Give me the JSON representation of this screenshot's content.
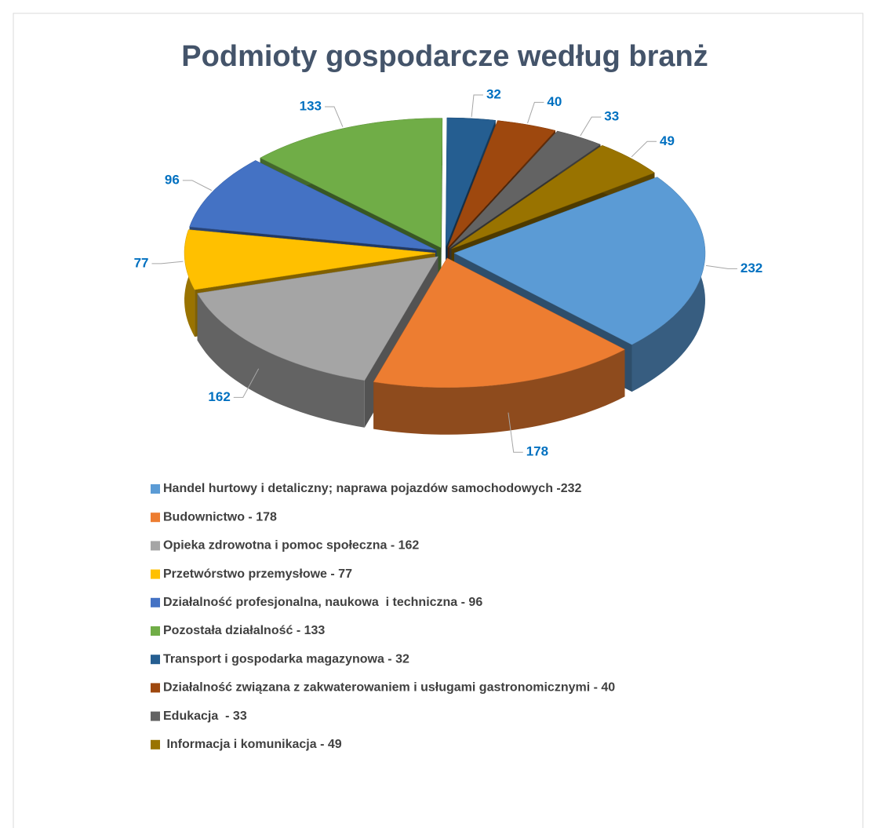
{
  "chart_data": {
    "type": "pie",
    "title": "Podmioty gospodarcze według branż",
    "categories": [
      "Handel hurtowy i detaliczny; naprawa pojazdów samochodowych -232",
      "Budownictwo - 178",
      "Opieka zdrowotna i pomoc społeczna - 162",
      "Przetwórstwo przemysłowe - 77",
      "Działalność profesjonalna, naukowa  i techniczna - 96",
      "Pozostała działalność - 133",
      "Transport i gospodarka magazynowa - 32",
      "Działalność związana z zakwaterowaniem i usługami gastronomicznymi - 40",
      "Edukacja  - 33",
      " Informacja i komunikacja - 49"
    ],
    "values": [
      232,
      178,
      162,
      77,
      96,
      133,
      32,
      40,
      33,
      49
    ],
    "colors": [
      "#5b9bd5",
      "#ed7d31",
      "#a5a5a5",
      "#ffc000",
      "#4472c4",
      "#70ad47",
      "#255e91",
      "#9e480e",
      "#636363",
      "#997300"
    ],
    "legend": "bottom"
  }
}
